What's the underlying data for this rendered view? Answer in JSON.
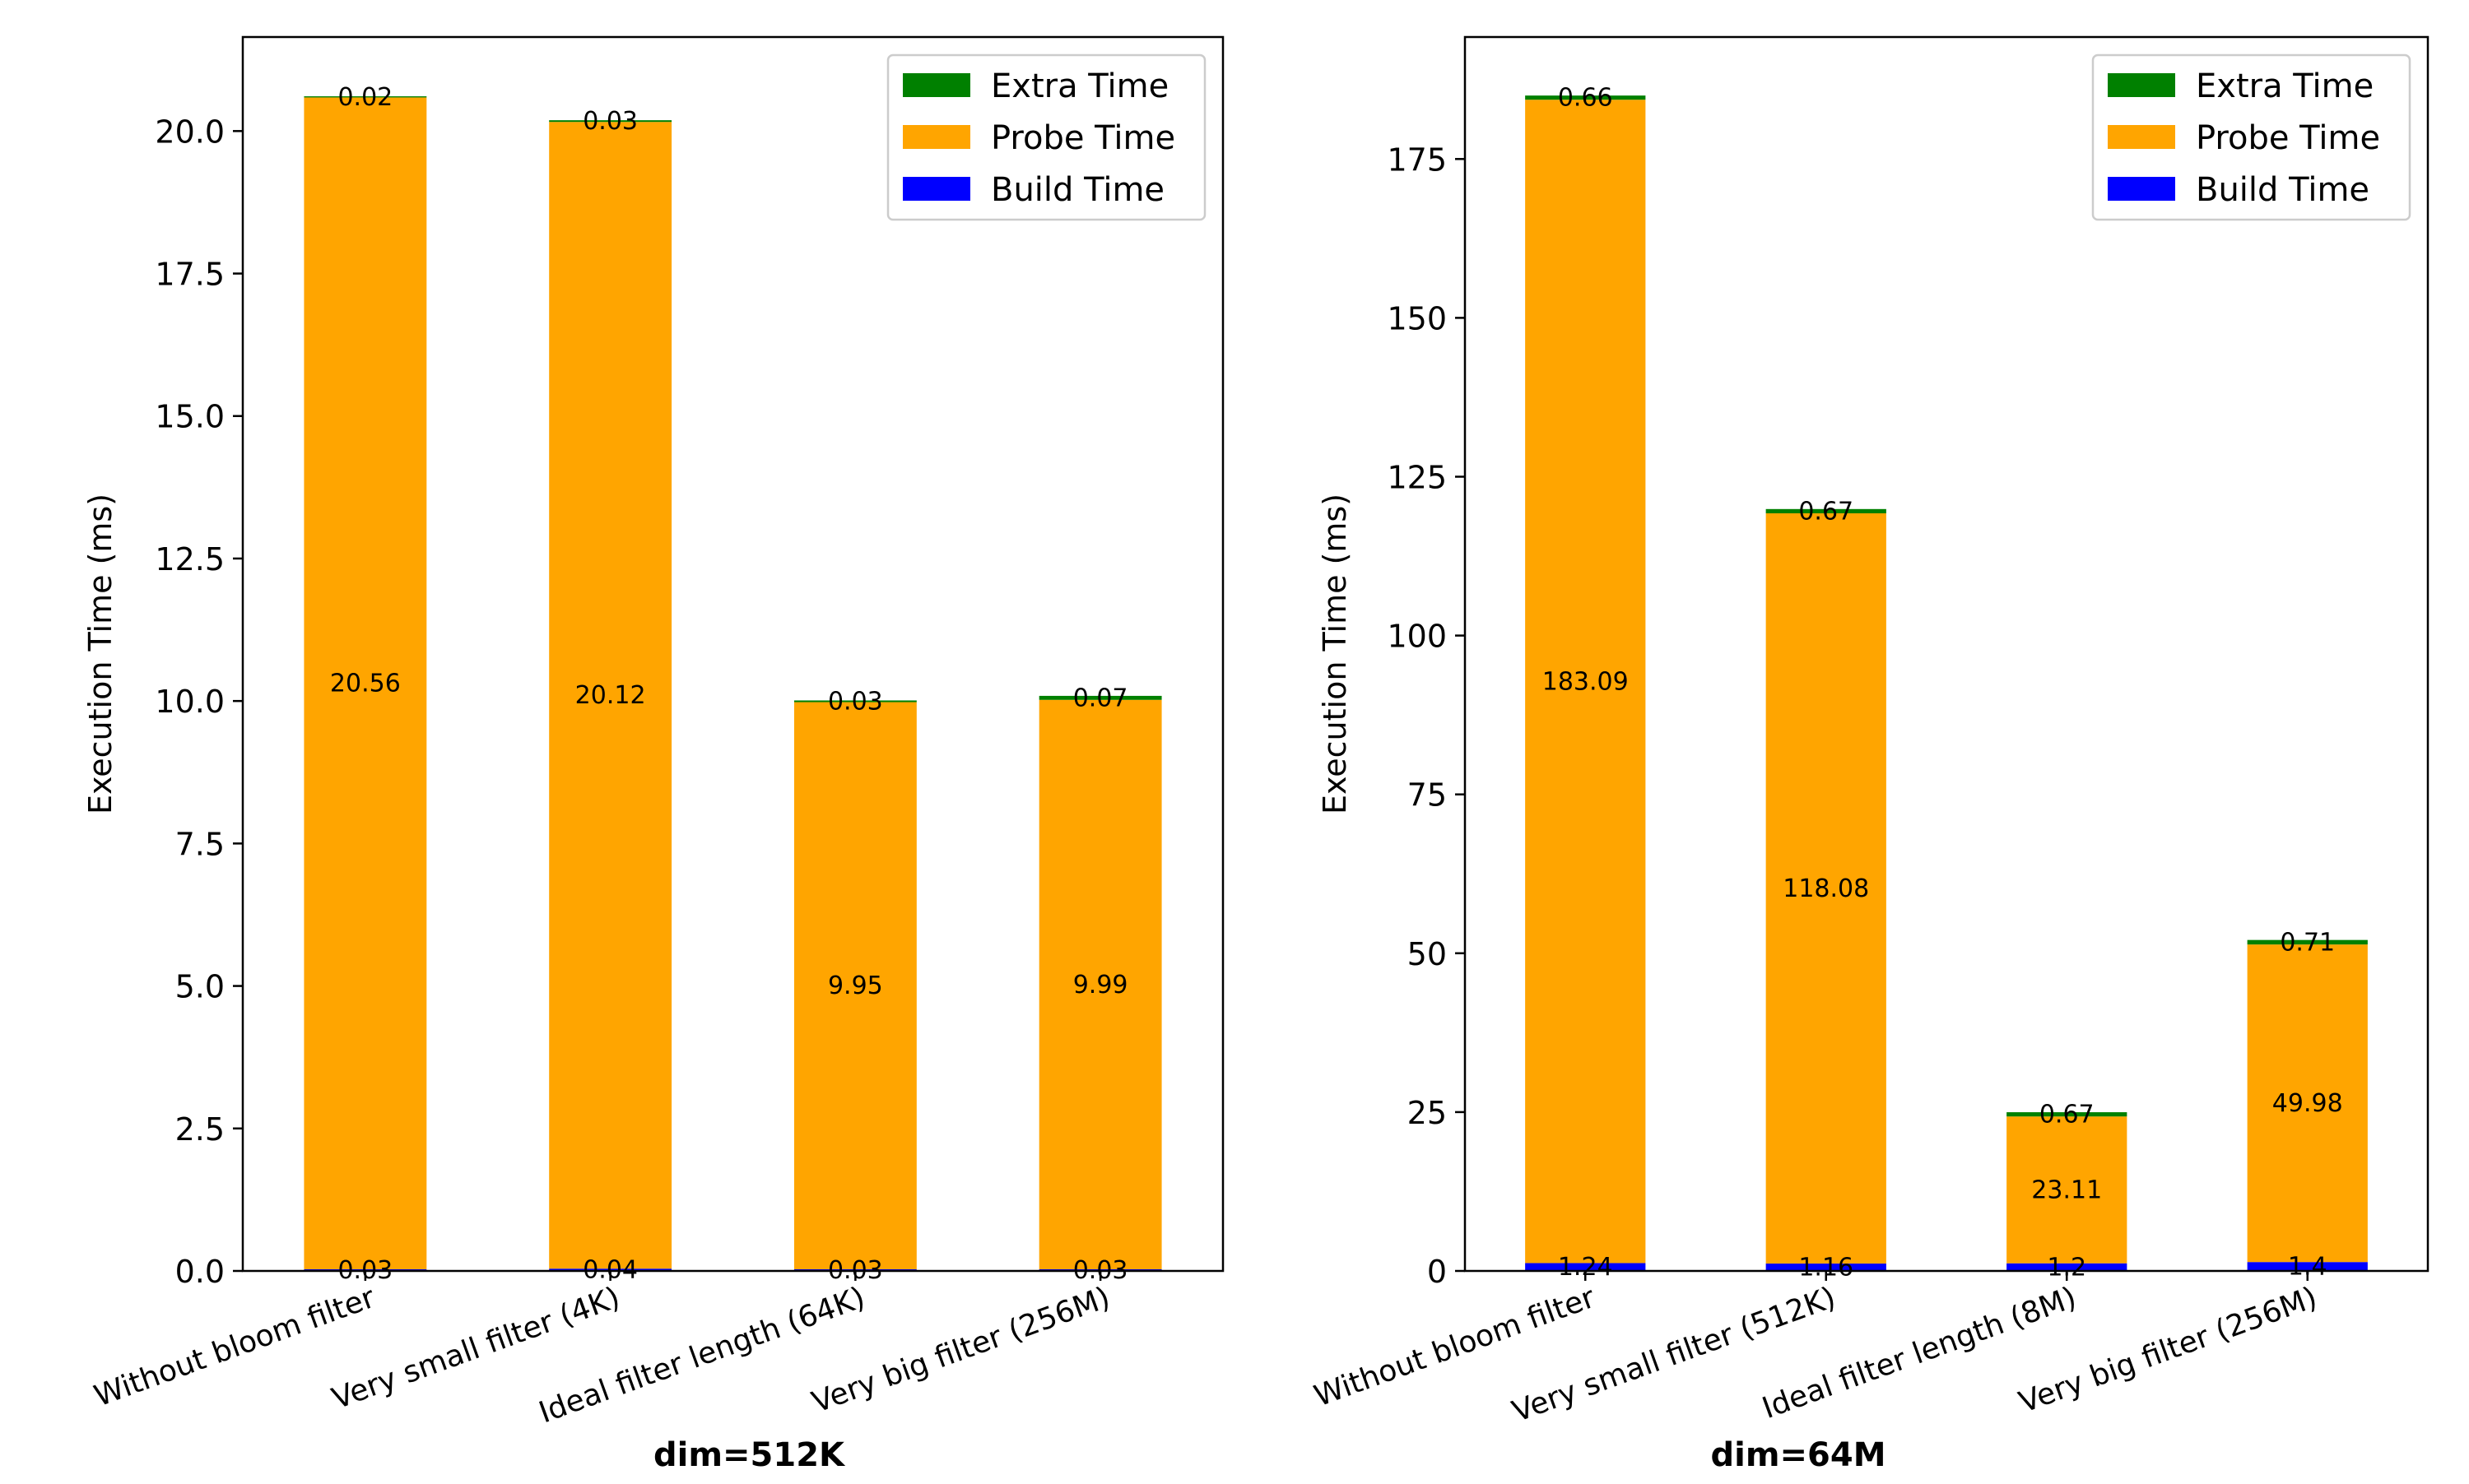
{
  "chart_data": [
    {
      "type": "bar",
      "stacked": true,
      "title": "dim=512K",
      "ylabel": "Execution Time (ms)",
      "xlabel": "",
      "categories": [
        "Without bloom filter",
        "Very small filter (4K)",
        "Ideal filter length (64K)",
        "Very big filter (256M)"
      ],
      "ylim": [
        0,
        21.65
      ],
      "yticks": [
        0.0,
        2.5,
        5.0,
        7.5,
        10.0,
        12.5,
        15.0,
        17.5,
        20.0
      ],
      "ytick_labels": [
        "0.0",
        "2.5",
        "5.0",
        "7.5",
        "10.0",
        "12.5",
        "15.0",
        "17.5",
        "20.0"
      ],
      "legend_position": "top-right",
      "series": [
        {
          "name": "Build Time",
          "color": "#0000ff",
          "values": [
            0.03,
            0.04,
            0.03,
            0.03
          ],
          "labels": [
            "0.03",
            "0.04",
            "0.03",
            "0.03"
          ]
        },
        {
          "name": "Probe Time",
          "color": "#ffa500",
          "values": [
            20.56,
            20.12,
            9.95,
            9.99
          ],
          "labels": [
            "20.56",
            "20.12",
            "9.95",
            "9.99"
          ]
        },
        {
          "name": "Extra Time",
          "color": "#008000",
          "values": [
            0.02,
            0.03,
            0.03,
            0.07
          ],
          "labels": [
            "0.02",
            "0.03",
            "0.03",
            "0.07"
          ]
        }
      ]
    },
    {
      "type": "bar",
      "stacked": true,
      "title": "dim=64M",
      "ylabel": "Execution Time (ms)",
      "xlabel": "",
      "categories": [
        "Without bloom filter",
        "Very small filter (512K)",
        "Ideal filter length (8M)",
        "Very big filter (256M)"
      ],
      "ylim": [
        0,
        194.2
      ],
      "yticks": [
        0,
        25,
        50,
        75,
        100,
        125,
        150,
        175
      ],
      "ytick_labels": [
        "0",
        "25",
        "50",
        "75",
        "100",
        "125",
        "150",
        "175"
      ],
      "legend_position": "top-right",
      "series": [
        {
          "name": "Build Time",
          "color": "#0000ff",
          "values": [
            1.24,
            1.16,
            1.2,
            1.4
          ],
          "labels": [
            "1.24",
            "1.16",
            "1.2",
            "1.4"
          ]
        },
        {
          "name": "Probe Time",
          "color": "#ffa500",
          "values": [
            183.09,
            118.08,
            23.11,
            49.98
          ],
          "labels": [
            "183.09",
            "118.08",
            "23.11",
            "49.98"
          ]
        },
        {
          "name": "Extra Time",
          "color": "#008000",
          "values": [
            0.66,
            0.67,
            0.67,
            0.71
          ],
          "labels": [
            "0.66",
            "0.67",
            "0.67",
            "0.71"
          ]
        }
      ]
    }
  ]
}
